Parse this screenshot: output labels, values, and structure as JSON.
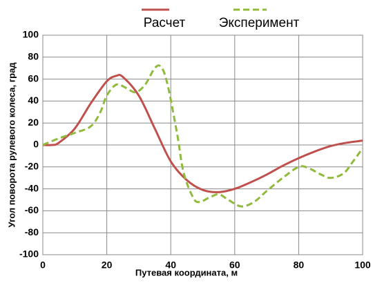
{
  "chart_data": {
    "type": "line",
    "xlabel": "Путевая координата,  м",
    "ylabel": "Угол поворота рулевого колеса, град",
    "xlim": [
      0,
      100
    ],
    "xticks": [
      0,
      20,
      40,
      60,
      80,
      100
    ],
    "ylim": [
      -100,
      100
    ],
    "yticks": [
      -100,
      -80,
      -60,
      -40,
      -20,
      0,
      20,
      40,
      60,
      80,
      100
    ],
    "grid": true,
    "series": [
      {
        "name": "Расчет",
        "color": "#c0504d",
        "dash": false,
        "x": [
          0,
          3,
          5,
          10,
          15,
          20,
          23,
          25,
          30,
          35,
          40,
          45,
          50,
          55,
          60,
          65,
          70,
          75,
          80,
          85,
          90,
          95,
          100
        ],
        "values": [
          0,
          0,
          2,
          15,
          38,
          58,
          63,
          62,
          45,
          15,
          -15,
          -32,
          -41,
          -43,
          -40,
          -34,
          -27,
          -19,
          -12,
          -6,
          -1,
          2,
          4
        ]
      },
      {
        "name": "Эксперимент",
        "color": "#8fba3c",
        "dash": true,
        "x": [
          0,
          5,
          10,
          15,
          18,
          20,
          23,
          26,
          29,
          32,
          35,
          37,
          39,
          42,
          44,
          47,
          49,
          52,
          55,
          58,
          62,
          66,
          70,
          75,
          80,
          83,
          87,
          90,
          94,
          97,
          100
        ],
        "values": [
          0,
          6,
          11,
          17,
          30,
          45,
          55,
          52,
          48,
          55,
          70,
          71,
          55,
          10,
          -25,
          -48,
          -52,
          -48,
          -45,
          -50,
          -56,
          -52,
          -42,
          -30,
          -20,
          -21,
          -27,
          -30,
          -26,
          -15,
          -3
        ]
      }
    ]
  }
}
